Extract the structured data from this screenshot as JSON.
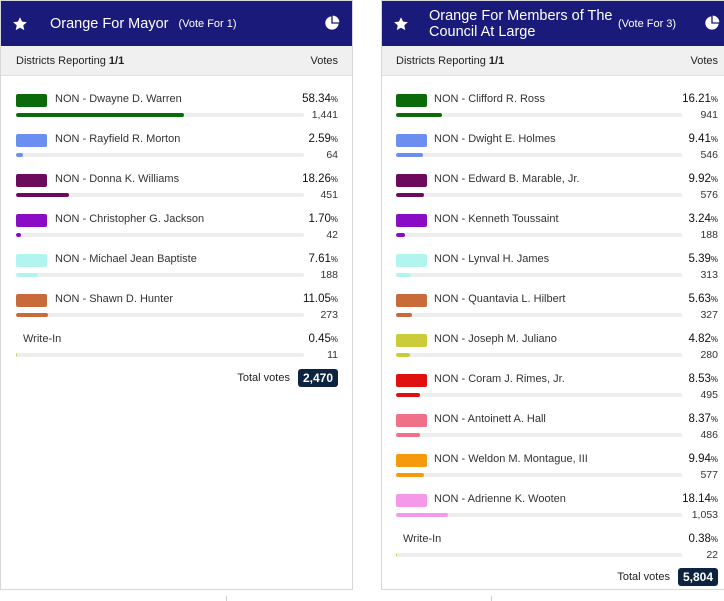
{
  "races": [
    {
      "title": "Orange For Mayor",
      "vote_for": "(Vote For 1)",
      "districts_label": "Districts Reporting",
      "districts_value": "1/1",
      "votes_header": "Votes",
      "candidates": [
        {
          "name": "NON - Dwayne D. Warren",
          "pct": "58.34",
          "votes": "1,441",
          "share": 58.34,
          "color": "#0b6b0b"
        },
        {
          "name": "NON - Rayfield R. Morton",
          "pct": "2.59",
          "votes": "64",
          "share": 2.59,
          "color": "#6b8ef0"
        },
        {
          "name": "NON - Donna K. Williams",
          "pct": "18.26",
          "votes": "451",
          "share": 18.26,
          "color": "#6e0a5c"
        },
        {
          "name": "NON - Christopher G. Jackson",
          "pct": "1.70",
          "votes": "42",
          "share": 1.7,
          "color": "#8a0cc4"
        },
        {
          "name": "NON - Michael Jean Baptiste",
          "pct": "7.61",
          "votes": "188",
          "share": 7.61,
          "color": "#b2f5ee"
        },
        {
          "name": "NON - Shawn D. Hunter",
          "pct": "11.05",
          "votes": "273",
          "share": 11.05,
          "color": "#c96a3a"
        },
        {
          "name": "Write-In",
          "pct": "0.45",
          "votes": "11",
          "share": 0.45,
          "color": "#c8d040",
          "writein": true
        }
      ],
      "total_label": "Total votes",
      "total_value": "2,470"
    },
    {
      "title": "Orange For Members of The Council At Large",
      "vote_for": "(Vote For 3)",
      "districts_label": "Districts Reporting",
      "districts_value": "1/1",
      "votes_header": "Votes",
      "candidates": [
        {
          "name": "NON - Clifford R. Ross",
          "pct": "16.21",
          "votes": "941",
          "share": 16.21,
          "color": "#0b6b0b"
        },
        {
          "name": "NON - Dwight E. Holmes",
          "pct": "9.41",
          "votes": "546",
          "share": 9.41,
          "color": "#6b8ef0"
        },
        {
          "name": "NON - Edward B. Marable, Jr.",
          "pct": "9.92",
          "votes": "576",
          "share": 9.92,
          "color": "#6e0a5c"
        },
        {
          "name": "NON - Kenneth Toussaint",
          "pct": "3.24",
          "votes": "188",
          "share": 3.24,
          "color": "#8a0cc4"
        },
        {
          "name": "NON - Lynval H. James",
          "pct": "5.39",
          "votes": "313",
          "share": 5.39,
          "color": "#b2f5ee"
        },
        {
          "name": "NON - Quantavia L. Hilbert",
          "pct": "5.63",
          "votes": "327",
          "share": 5.63,
          "color": "#c96a3a"
        },
        {
          "name": "NON - Joseph M. Juliano",
          "pct": "4.82",
          "votes": "280",
          "share": 4.82,
          "color": "#cccc3a"
        },
        {
          "name": "NON - Coram J. Rimes, Jr.",
          "pct": "8.53",
          "votes": "495",
          "share": 8.53,
          "color": "#e01010"
        },
        {
          "name": "NON - Antoinett A. Hall",
          "pct": "8.37",
          "votes": "486",
          "share": 8.37,
          "color": "#f0708a"
        },
        {
          "name": "NON - Weldon M. Montague, III",
          "pct": "9.94",
          "votes": "577",
          "share": 9.94,
          "color": "#f59a0c"
        },
        {
          "name": "NON - Adrienne K. Wooten",
          "pct": "18.14",
          "votes": "1,053",
          "share": 18.14,
          "color": "#f598e8"
        },
        {
          "name": "Write-In",
          "pct": "0.38",
          "votes": "22",
          "share": 0.38,
          "color": "#c8d040",
          "writein": true
        }
      ],
      "total_label": "Total votes",
      "total_value": "5,804"
    }
  ],
  "icons": {
    "star": "star-icon",
    "pie": "pie-chart-icon"
  },
  "colors": {
    "header_bg": "#1a1a7a",
    "badge_bg": "#0d2440"
  },
  "pct_unit": "%"
}
